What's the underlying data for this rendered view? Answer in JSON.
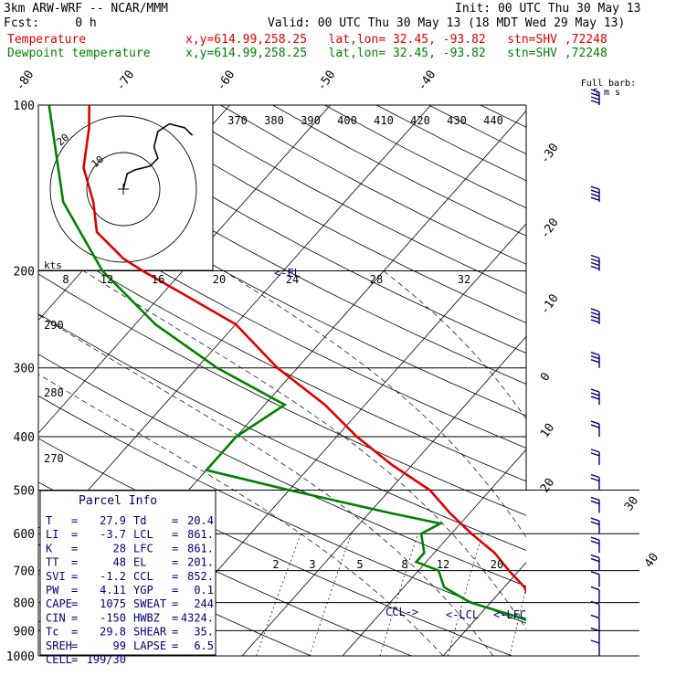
{
  "header": {
    "title": "3km ARW-WRF -- NCAR/MMM",
    "init": "Init: 00 UTC Thu 30 May 13",
    "fcst": "Fcst:     0 h",
    "valid": "Valid: 00 UTC Thu 30 May 13 (18 MDT Wed 29 May 13)",
    "temp_name": "Temperature",
    "temp_loc": "x,y=614.99,258.25   lat,lon= 32.45, -93.82   stn=SHV ,72248",
    "dew_name": "Dewpoint temperature",
    "dew_loc": "x,y=614.99,258.25   lat,lon= 32.45, -93.82   stn=SHV ,72248"
  },
  "colors": {
    "temperature": "#e00000",
    "dewpoint": "#008000",
    "wind": "#00007a",
    "text": "#000000",
    "info": "#00007a"
  },
  "chart_data": [
    {
      "type": "line",
      "subtype": "skew-t log-p",
      "y_scale": "log",
      "ylim": [
        1000,
        100
      ],
      "pressure_levels": [
        1000,
        900,
        800,
        700,
        600,
        500,
        400,
        300,
        200,
        100
      ],
      "isotherm_labels": [
        -80,
        -70,
        -60,
        -50,
        -40,
        -30,
        -20,
        -10,
        0,
        10,
        20,
        30,
        40
      ],
      "theta_labels": [
        370,
        380,
        390,
        400,
        410,
        420,
        430,
        440
      ],
      "theta_side_labels": [
        290,
        280,
        270
      ],
      "mixing_ratio_labels": [
        2,
        3,
        5,
        8,
        12,
        20
      ],
      "series": [
        {
          "name": "Temperature",
          "points": [
            [
              1000,
              26
            ],
            [
              970,
              25
            ],
            [
              950,
              22
            ],
            [
              925,
              20
            ],
            [
              900,
              18
            ],
            [
              870,
              17
            ],
            [
              850,
              16
            ],
            [
              800,
              14
            ],
            [
              750,
              12
            ],
            [
              700,
              9
            ],
            [
              650,
              6
            ],
            [
              600,
              2
            ],
            [
              550,
              -2
            ],
            [
              500,
              -6
            ],
            [
              450,
              -12
            ],
            [
              400,
              -18
            ],
            [
              350,
              -24
            ],
            [
              300,
              -32
            ],
            [
              250,
              -40
            ],
            [
              220,
              -48
            ],
            [
              200,
              -54
            ],
            [
              190,
              -57
            ],
            [
              170,
              -62
            ],
            [
              150,
              -65
            ],
            [
              130,
              -69
            ],
            [
              110,
              -72
            ],
            [
              100,
              -74
            ]
          ]
        },
        {
          "name": "Dewpoint temperature",
          "points": [
            [
              1000,
              20
            ],
            [
              970,
              20
            ],
            [
              950,
              19
            ],
            [
              925,
              18
            ],
            [
              900,
              18
            ],
            [
              870,
              16
            ],
            [
              850,
              14
            ],
            [
              800,
              8
            ],
            [
              750,
              4
            ],
            [
              700,
              2
            ],
            [
              675,
              -1
            ],
            [
              650,
              -1
            ],
            [
              600,
              -3
            ],
            [
              575,
              -2
            ],
            [
              550,
              -8
            ],
            [
              500,
              -20
            ],
            [
              460,
              -30
            ],
            [
              400,
              -30
            ],
            [
              350,
              -28
            ],
            [
              300,
              -38
            ],
            [
              250,
              -48
            ],
            [
              200,
              -58
            ],
            [
              150,
              -68
            ],
            [
              100,
              -78
            ]
          ]
        }
      ],
      "markers": [
        {
          "label": "<-EL",
          "pressure": 201
        },
        {
          "label": "CCL->",
          "pressure": 852
        },
        {
          "label": "<-LCL",
          "pressure": 861
        },
        {
          "label": "<-LFC",
          "pressure": 861
        }
      ],
      "wind_barbs_note": "Full barb: 5 m s",
      "wind_barbs": [
        {
          "pressure": 1000,
          "speed": 5
        },
        {
          "pressure": 950,
          "speed": 5
        },
        {
          "pressure": 900,
          "speed": 5
        },
        {
          "pressure": 850,
          "speed": 5
        },
        {
          "pressure": 800,
          "speed": 7
        },
        {
          "pressure": 750,
          "speed": 7
        },
        {
          "pressure": 700,
          "speed": 8
        },
        {
          "pressure": 650,
          "speed": 9
        },
        {
          "pressure": 600,
          "speed": 10
        },
        {
          "pressure": 550,
          "speed": 10
        },
        {
          "pressure": 500,
          "speed": 10
        },
        {
          "pressure": 450,
          "speed": 12
        },
        {
          "pressure": 400,
          "speed": 12
        },
        {
          "pressure": 350,
          "speed": 14
        },
        {
          "pressure": 300,
          "speed": 16
        },
        {
          "pressure": 250,
          "speed": 18
        },
        {
          "pressure": 200,
          "speed": 20
        },
        {
          "pressure": 150,
          "speed": 22
        },
        {
          "pressure": 100,
          "speed": 20
        }
      ]
    },
    {
      "type": "hodograph",
      "units": "kts",
      "ring_labels": [
        "10",
        "20"
      ],
      "axis_labels": [
        "8",
        "12",
        "16",
        "20",
        "24",
        "28",
        "32"
      ],
      "path": [
        [
          0,
          0
        ],
        [
          1,
          4
        ],
        [
          3,
          5
        ],
        [
          7,
          6
        ],
        [
          9,
          8
        ],
        [
          8,
          11
        ],
        [
          9,
          15
        ],
        [
          12,
          17
        ],
        [
          16,
          16
        ],
        [
          18,
          14
        ]
      ]
    }
  ],
  "parcel_info": {
    "title": "Parcel Info",
    "rows": [
      [
        "T",
        "27.9",
        "Td",
        "20.4"
      ],
      [
        "LI",
        "-3.7",
        "LCL",
        "861."
      ],
      [
        "K",
        "28",
        "LFC",
        "861."
      ],
      [
        "TT",
        "48",
        "EL",
        "201."
      ],
      [
        "SVI",
        "-1.2",
        "CCL",
        "852."
      ],
      [
        "PW",
        "4.11",
        "YGP",
        "0.1"
      ],
      [
        "CAPE",
        "1075",
        "SWEAT",
        "244"
      ],
      [
        "CIN",
        "-150",
        "HWBZ",
        "4324."
      ],
      [
        "Tc",
        "29.8",
        "SHEAR",
        "35."
      ],
      [
        "SREH",
        "99",
        "LAPSE",
        "6.5"
      ],
      [
        "CELL",
        "199/30",
        "",
        ""
      ]
    ]
  }
}
